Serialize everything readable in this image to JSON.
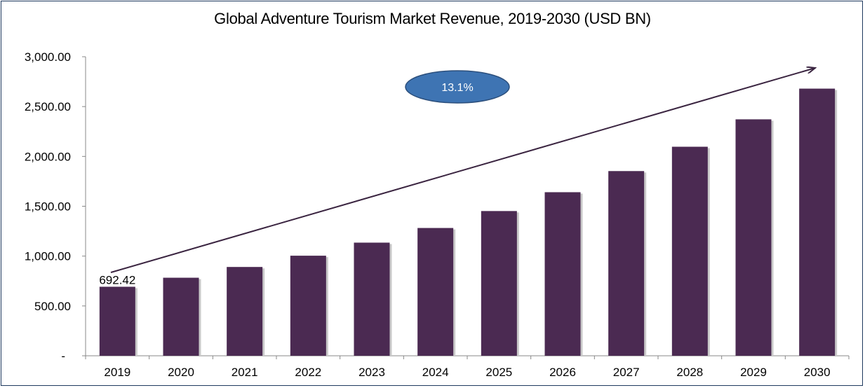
{
  "chart_data": {
    "type": "bar",
    "title": "Global Adventure Tourism Market Revenue, 2019-2030 (USD BN)",
    "categories": [
      "2019",
      "2020",
      "2021",
      "2022",
      "2023",
      "2024",
      "2025",
      "2026",
      "2027",
      "2028",
      "2029",
      "2030"
    ],
    "values": [
      692.42,
      783,
      891,
      1004,
      1135,
      1282,
      1452,
      1641,
      1853,
      2097,
      2372,
      2680
    ],
    "ylim": [
      0,
      3000
    ],
    "yticks": [
      "-",
      "500.00",
      "1,000.00",
      "1,500.00",
      "2,000.00",
      "2,500.00",
      "3,000.00"
    ],
    "data_labels": [
      {
        "category": "2019",
        "text": "692.42"
      }
    ],
    "annotation": "13.1%",
    "bar_color": "#4b2a52",
    "cagr_color": "#3e74b3",
    "grid": false
  }
}
